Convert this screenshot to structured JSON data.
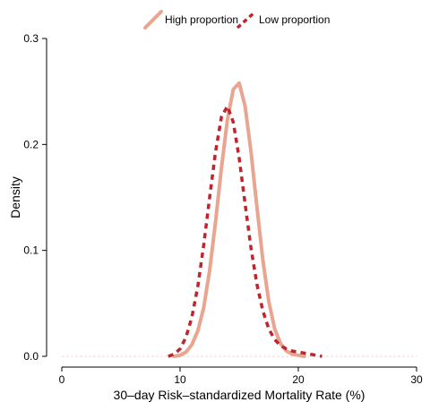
{
  "chart_data": {
    "type": "line",
    "title": "",
    "xlabel": "30–day Risk–standardized Mortality Rate (%)",
    "ylabel": "Density",
    "xlim": [
      0,
      30
    ],
    "ylim": [
      0,
      0.3
    ],
    "xticks": [
      "0",
      "10",
      "20",
      "30"
    ],
    "yticks": [
      "0.0",
      "0.1",
      "0.2",
      "0.3"
    ],
    "grid": false,
    "legend": {
      "placement": "top-center",
      "entries": [
        "High proportion",
        "Low proportion"
      ]
    },
    "series": [
      {
        "name": "High proportion",
        "color": "#e9a58f",
        "line_style": "solid",
        "x": [
          9.5,
          10,
          10.5,
          11,
          11.5,
          12,
          12.5,
          13,
          13.5,
          14,
          14.5,
          15,
          15.5,
          16,
          16.5,
          17,
          17.5,
          18,
          18.5,
          19,
          19.5,
          20,
          20.5
        ],
        "y": [
          0.0,
          0.001,
          0.004,
          0.011,
          0.024,
          0.046,
          0.081,
          0.127,
          0.178,
          0.223,
          0.252,
          0.258,
          0.236,
          0.193,
          0.141,
          0.091,
          0.052,
          0.026,
          0.012,
          0.005,
          0.002,
          0.001,
          0.0
        ]
      },
      {
        "name": "Low proportion",
        "color": "#c0242e",
        "line_style": "dashed",
        "x": [
          9,
          9.5,
          10,
          10.5,
          11,
          11.5,
          12,
          12.5,
          13,
          13.5,
          14,
          14.5,
          15,
          15.5,
          16,
          16.5,
          17,
          17.5,
          18,
          18.5,
          19,
          19.5,
          20,
          20.5,
          21,
          21.5,
          22
        ],
        "y": [
          0.0,
          0.002,
          0.007,
          0.018,
          0.037,
          0.066,
          0.105,
          0.15,
          0.193,
          0.226,
          0.236,
          0.221,
          0.187,
          0.144,
          0.102,
          0.068,
          0.043,
          0.026,
          0.016,
          0.01,
          0.007,
          0.005,
          0.004,
          0.003,
          0.002,
          0.001,
          0.0
        ]
      }
    ]
  }
}
